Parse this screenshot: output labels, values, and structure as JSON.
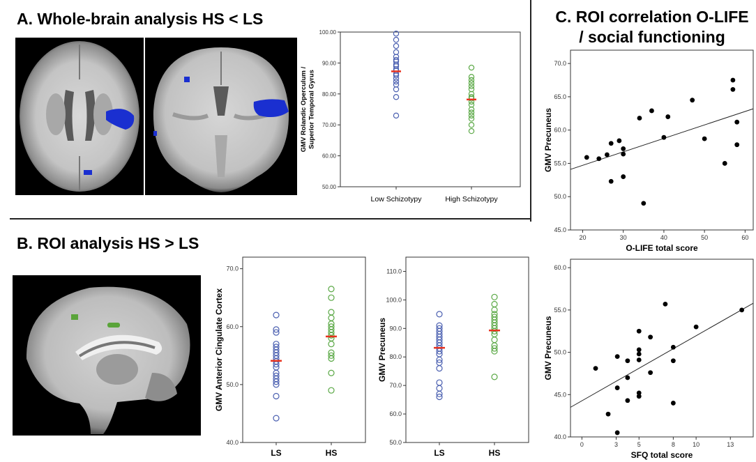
{
  "panels": {
    "a_title": "A. Whole-brain analysis HS < LS",
    "b_title": "B. ROI analysis HS > LS",
    "c_title_line1": "C. ROI correlation O-LIFE",
    "c_title_line2": "/ social functioning"
  },
  "colors": {
    "low_group": "#4a5fb0",
    "high_group": "#5aa845",
    "mean_marker": "#e8321e",
    "blob_blue": "#1a2fd0",
    "blob_green": "#5aa43a"
  },
  "chart_data": [
    {
      "id": "A",
      "type": "scatter",
      "ylabel": "GMV Rolandic Operculum  / Superior Temporal Gyrus",
      "xlabel": "",
      "categories": [
        "Low Schizotypy",
        "High Schizotypy"
      ],
      "ylim": [
        50,
        100
      ],
      "yticks": [
        "50.00",
        "60.00",
        "70.00",
        "80.00",
        "90.00",
        "100.00"
      ],
      "series": [
        {
          "values": [
            99.5,
            97.5,
            95.5,
            93.5,
            92,
            91,
            90.5,
            89.5,
            89,
            88,
            87.5,
            86.5,
            86,
            85,
            84,
            83,
            81.5,
            79,
            73
          ]
        },
        {
          "values": [
            88.5,
            85.5,
            84.5,
            83.5,
            82.5,
            81.5,
            80,
            79,
            78.5,
            77.5,
            76.5,
            75,
            74,
            73,
            72,
            70,
            68
          ]
        }
      ],
      "means": [
        87.3,
        78.2
      ]
    },
    {
      "id": "B1",
      "type": "scatter",
      "ylabel": "GMV Anterior Cingulate Cortex",
      "xlabel": "",
      "categories": [
        "LS",
        "HS"
      ],
      "ylim": [
        40,
        72
      ],
      "yticks": [
        "40.0",
        "50.0",
        "60.0",
        "70.0"
      ],
      "series": [
        {
          "values": [
            62,
            59.5,
            59,
            57,
            56.5,
            56,
            55.5,
            55,
            54.5,
            54,
            53.5,
            53,
            52,
            51.5,
            51,
            50.5,
            50,
            48,
            44.2
          ]
        },
        {
          "values": [
            66.5,
            65,
            62.5,
            61.5,
            60.5,
            60,
            59.5,
            59,
            58.5,
            58,
            57,
            55.5,
            55,
            54.5,
            52,
            49
          ]
        }
      ],
      "means": [
        54.1,
        58.3
      ]
    },
    {
      "id": "B2",
      "type": "scatter",
      "ylabel": "GMV Precuneus",
      "xlabel": "",
      "categories": [
        "LS",
        "HS"
      ],
      "ylim": [
        50,
        115
      ],
      "yticks": [
        "50.0",
        "60.0",
        "70.0",
        "80.0",
        "90.0",
        "100.0",
        "110.0"
      ],
      "series": [
        {
          "values": [
            95,
            91,
            90,
            89,
            88,
            87,
            86,
            85,
            84,
            83,
            82,
            81,
            79,
            78,
            76,
            71,
            69,
            67,
            66
          ]
        },
        {
          "values": [
            101,
            98.5,
            96.5,
            95,
            94,
            93,
            92,
            91,
            90,
            89,
            88,
            86,
            84,
            83,
            82,
            73
          ]
        }
      ],
      "means": [
        83.2,
        89.3
      ]
    },
    {
      "id": "C1",
      "type": "scatter",
      "ylabel": "GMV Precuneus",
      "xlabel": "O-LIFE total score",
      "xlim": [
        17,
        62
      ],
      "ylim": [
        45,
        72
      ],
      "xticks": [
        20,
        30,
        40,
        50,
        60
      ],
      "yticks": [
        "45.0",
        "50.0",
        "55.0",
        "60.0",
        "65.0",
        "70.0"
      ],
      "points": [
        [
          21,
          55.9
        ],
        [
          24,
          55.7
        ],
        [
          26,
          56.3
        ],
        [
          27,
          58
        ],
        [
          27,
          52.3
        ],
        [
          29,
          58.4
        ],
        [
          30,
          57.2
        ],
        [
          30,
          56.4
        ],
        [
          30,
          53
        ],
        [
          34,
          61.8
        ],
        [
          35,
          49
        ],
        [
          37,
          62.9
        ],
        [
          40,
          58.9
        ],
        [
          41,
          62
        ],
        [
          47,
          64.5
        ],
        [
          50,
          58.7
        ],
        [
          55,
          55
        ],
        [
          57,
          67.5
        ],
        [
          57,
          66.1
        ],
        [
          58,
          61.2
        ],
        [
          58,
          57.8
        ]
      ],
      "fit": [
        [
          17,
          54.1
        ],
        [
          62,
          63.2
        ]
      ]
    },
    {
      "id": "C2",
      "type": "scatter",
      "ylabel": "GMV Precuneus",
      "xlabel": "SFQ total score",
      "xlim": [
        -1,
        15
      ],
      "ylim": [
        40,
        61
      ],
      "xticks": [
        0,
        3,
        5,
        8,
        10,
        13
      ],
      "yticks": [
        "40.0",
        "45.0",
        "50.0",
        "55.0",
        "60.0"
      ],
      "points": [
        [
          1.2,
          48.1
        ],
        [
          2.3,
          42.7
        ],
        [
          3.1,
          40.5
        ],
        [
          3.1,
          49.5
        ],
        [
          3.1,
          45.8
        ],
        [
          4,
          49
        ],
        [
          4,
          47
        ],
        [
          4,
          44.3
        ],
        [
          5,
          52.5
        ],
        [
          5,
          50.3
        ],
        [
          5,
          49.8
        ],
        [
          5,
          49.1
        ],
        [
          5,
          45.2
        ],
        [
          5,
          44.8
        ],
        [
          6,
          51.8
        ],
        [
          6,
          47.6
        ],
        [
          7.3,
          55.7
        ],
        [
          8,
          50.6
        ],
        [
          8,
          49
        ],
        [
          8,
          44
        ],
        [
          10,
          53
        ],
        [
          14,
          55
        ]
      ],
      "fit": [
        [
          -1,
          43.5
        ],
        [
          15,
          55.8
        ]
      ]
    }
  ]
}
